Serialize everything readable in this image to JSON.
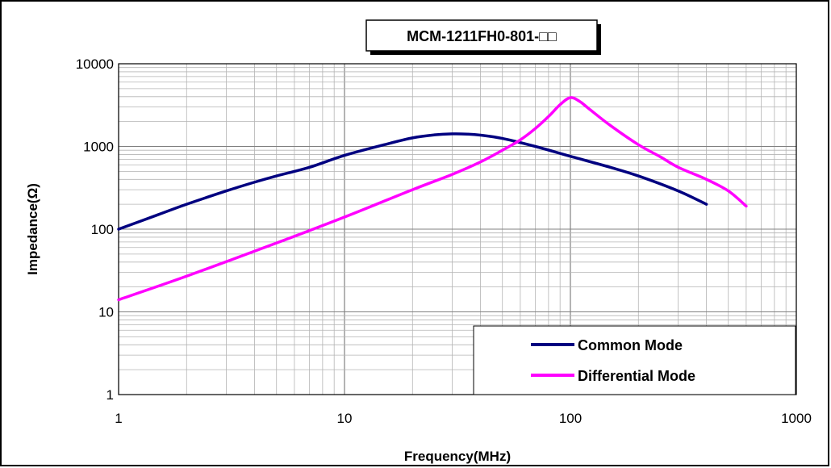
{
  "chart_data": {
    "type": "line",
    "title": "MCM-1211FH0-801-□□",
    "xlabel": "Frequency(MHz)",
    "ylabel": "Impedance(Ω)",
    "x_scale": "log",
    "y_scale": "log",
    "xlim": [
      1,
      1000
    ],
    "ylim": [
      1,
      10000
    ],
    "x_ticks": [
      "1",
      "10",
      "100",
      "1000"
    ],
    "y_ticks": [
      "1",
      "10",
      "100",
      "1000",
      "10000"
    ],
    "grid": true,
    "legend_position": "bottom-right",
    "series": [
      {
        "name": "Common Mode",
        "color": "#000080",
        "points": [
          [
            1,
            100
          ],
          [
            1.5,
            150
          ],
          [
            2,
            200
          ],
          [
            3,
            290
          ],
          [
            4,
            370
          ],
          [
            5,
            440
          ],
          [
            7,
            560
          ],
          [
            10,
            780
          ],
          [
            15,
            1050
          ],
          [
            20,
            1270
          ],
          [
            25,
            1380
          ],
          [
            30,
            1420
          ],
          [
            35,
            1410
          ],
          [
            40,
            1370
          ],
          [
            50,
            1250
          ],
          [
            70,
            1000
          ],
          [
            100,
            760
          ],
          [
            150,
            560
          ],
          [
            200,
            440
          ],
          [
            300,
            290
          ],
          [
            400,
            200
          ]
        ]
      },
      {
        "name": "Differential Mode",
        "color": "#ff00ff",
        "points": [
          [
            1,
            14
          ],
          [
            2,
            27
          ],
          [
            5,
            68
          ],
          [
            10,
            140
          ],
          [
            20,
            300
          ],
          [
            30,
            460
          ],
          [
            40,
            650
          ],
          [
            50,
            900
          ],
          [
            60,
            1200
          ],
          [
            70,
            1650
          ],
          [
            80,
            2300
          ],
          [
            90,
            3200
          ],
          [
            100,
            3900
          ],
          [
            110,
            3500
          ],
          [
            120,
            2900
          ],
          [
            150,
            1800
          ],
          [
            200,
            1050
          ],
          [
            250,
            750
          ],
          [
            300,
            560
          ],
          [
            400,
            400
          ],
          [
            500,
            290
          ],
          [
            600,
            190
          ]
        ]
      }
    ]
  }
}
